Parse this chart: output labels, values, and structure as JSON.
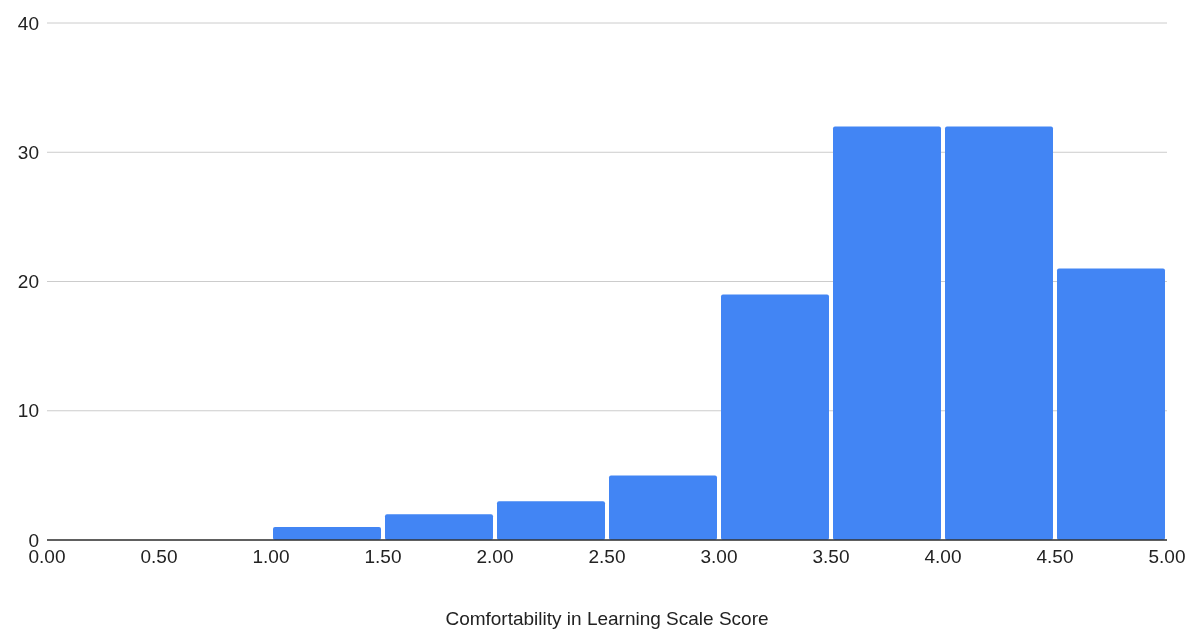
{
  "chart_data": {
    "type": "histogram",
    "xlabel": "Comfortability in Learning Scale Score",
    "bins": [
      0,
      0.5,
      1,
      1.5,
      2,
      2.5,
      3,
      3.5,
      4,
      4.5,
      5
    ],
    "values": [
      0,
      0,
      1,
      2,
      3,
      5,
      19,
      32,
      32,
      21
    ],
    "color": "#4285f4",
    "xlim": [
      0,
      5
    ],
    "xticks": [
      {
        "value": 0,
        "label": "0.00"
      },
      {
        "value": 0.5,
        "label": "0.50"
      },
      {
        "value": 1,
        "label": "1.00"
      },
      {
        "value": 1.5,
        "label": "1.50"
      },
      {
        "value": 2,
        "label": "2.00"
      },
      {
        "value": 2.5,
        "label": "2.50"
      },
      {
        "value": 3,
        "label": "3.00"
      },
      {
        "value": 3.5,
        "label": "3.50"
      },
      {
        "value": 4,
        "label": "4.00"
      },
      {
        "value": 4.5,
        "label": "4.50"
      },
      {
        "value": 5,
        "label": "5.00"
      }
    ],
    "ylim": [
      0,
      40
    ],
    "yticks": [
      0,
      10,
      20,
      30,
      40
    ],
    "grid": "y"
  }
}
